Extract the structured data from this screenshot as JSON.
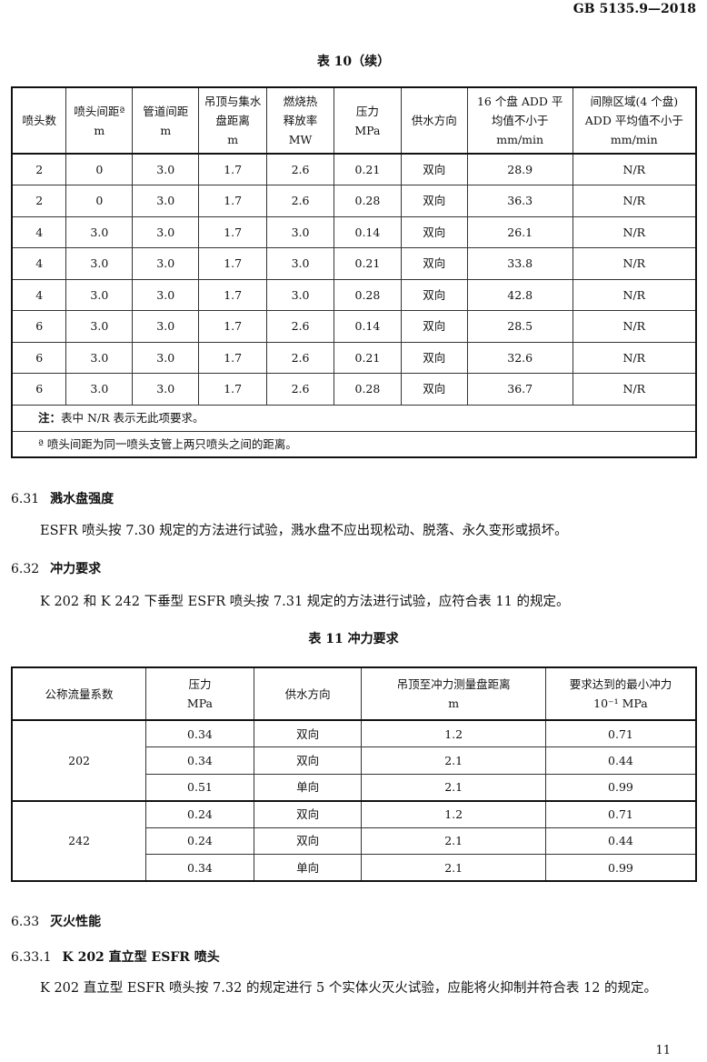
{
  "header": {
    "standard": "GB 5135.9—2018"
  },
  "table10": {
    "title": "表 10（续）",
    "headers": [
      "喷头数",
      "喷头间距ª\nm",
      "管道间距\nm",
      "吊顶与集水\n盘距离\nm",
      "燃烧热\n释放率\nMW",
      "压力\nMPa",
      "供水方向",
      "16 个盘 ADD 平\n均值不小于\nmm/min",
      "间隙区域(4 个盘)\nADD 平均值不小于\nmm/min"
    ],
    "rows": [
      [
        "2",
        "0",
        "3.0",
        "1.7",
        "2.6",
        "0.21",
        "双向",
        "28.9",
        "N/R"
      ],
      [
        "2",
        "0",
        "3.0",
        "1.7",
        "2.6",
        "0.28",
        "双向",
        "36.3",
        "N/R"
      ],
      [
        "4",
        "3.0",
        "3.0",
        "1.7",
        "3.0",
        "0.14",
        "双向",
        "26.1",
        "N/R"
      ],
      [
        "4",
        "3.0",
        "3.0",
        "1.7",
        "3.0",
        "0.21",
        "双向",
        "33.8",
        "N/R"
      ],
      [
        "4",
        "3.0",
        "3.0",
        "1.7",
        "3.0",
        "0.28",
        "双向",
        "42.8",
        "N/R"
      ],
      [
        "6",
        "3.0",
        "3.0",
        "1.7",
        "2.6",
        "0.14",
        "双向",
        "28.5",
        "N/R"
      ],
      [
        "6",
        "3.0",
        "3.0",
        "1.7",
        "2.6",
        "0.21",
        "双向",
        "32.6",
        "N/R"
      ],
      [
        "6",
        "3.0",
        "3.0",
        "1.7",
        "2.6",
        "0.28",
        "双向",
        "36.7",
        "N/R"
      ]
    ],
    "note_label": "注：",
    "note": "表中 N/R 表示无此项要求。",
    "footnote": "ª  喷头间距为同一喷头支管上两只喷头之间的距离。"
  },
  "s631": {
    "num": "6.31",
    "title": "溅水盘强度",
    "text": "ESFR 喷头按 7.30 规定的方法进行试验，溅水盘不应出现松动、脱落、永久变形或损坏。"
  },
  "s632": {
    "num": "6.32",
    "title": "冲力要求",
    "text": "K 202 和 K 242 下垂型 ESFR 喷头按 7.31 规定的方法进行试验，应符合表 11 的规定。"
  },
  "table11": {
    "title": "表 11   冲力要求",
    "headers": [
      "公称流量系数",
      "压力\nMPa",
      "供水方向",
      "吊顶至冲力测量盘距离\nm",
      "要求达到的最小冲力\n10⁻¹ MPa"
    ],
    "groups": [
      {
        "k": "202",
        "rows": [
          [
            "0.34",
            "双向",
            "1.2",
            "0.71"
          ],
          [
            "0.34",
            "双向",
            "2.1",
            "0.44"
          ],
          [
            "0.51",
            "单向",
            "2.1",
            "0.99"
          ]
        ]
      },
      {
        "k": "242",
        "rows": [
          [
            "0.24",
            "双向",
            "1.2",
            "0.71"
          ],
          [
            "0.24",
            "双向",
            "2.1",
            "0.44"
          ],
          [
            "0.34",
            "单向",
            "2.1",
            "0.99"
          ]
        ]
      }
    ]
  },
  "s633": {
    "num": "6.33",
    "title": "灭火性能"
  },
  "s6331": {
    "num": "6.33.1",
    "title": "K 202 直立型 ESFR 喷头",
    "text": "K 202 直立型 ESFR 喷头按 7.32 的规定进行 5 个实体火灭火试验，应能将火抑制并符合表 12 的规定。"
  },
  "page_number": "11"
}
